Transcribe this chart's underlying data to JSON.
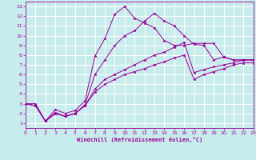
{
  "background_color": "#c8ecec",
  "grid_color": "#aadddd",
  "line_color": "#990099",
  "xlabel": "Windchill (Refroidissement éolien,°C)",
  "xlim": [
    0,
    23
  ],
  "ylim": [
    0.5,
    13.5
  ],
  "xticks": [
    0,
    1,
    2,
    3,
    4,
    5,
    6,
    7,
    8,
    9,
    10,
    11,
    12,
    13,
    14,
    15,
    16,
    17,
    18,
    19,
    20,
    21,
    22,
    23
  ],
  "yticks": [
    1,
    2,
    3,
    4,
    5,
    6,
    7,
    8,
    9,
    10,
    11,
    12,
    13
  ],
  "series": [
    [
      3.0,
      3.0,
      1.2,
      2.4,
      2.0,
      2.3,
      3.3,
      7.9,
      9.7,
      12.2,
      13.0,
      11.8,
      11.3,
      10.8,
      9.5,
      9.0,
      9.0,
      9.2,
      9.2,
      9.2,
      7.8,
      7.5,
      7.5,
      7.5
    ],
    [
      3.0,
      2.8,
      1.2,
      2.1,
      1.7,
      2.0,
      2.9,
      6.0,
      7.5,
      9.0,
      10.0,
      10.5,
      11.5,
      12.3,
      11.5,
      11.0,
      10.0,
      9.1,
      9.0,
      7.5,
      7.8,
      7.5,
      7.5,
      7.5
    ],
    [
      3.0,
      2.8,
      1.2,
      2.0,
      1.7,
      2.0,
      2.8,
      4.5,
      5.5,
      6.0,
      6.5,
      7.0,
      7.5,
      8.0,
      8.3,
      8.8,
      9.3,
      6.2,
      6.5,
      6.8,
      7.0,
      7.2,
      7.5,
      7.5
    ],
    [
      3.0,
      2.8,
      1.2,
      2.0,
      1.7,
      2.0,
      2.8,
      4.2,
      5.0,
      5.5,
      6.0,
      6.3,
      6.6,
      7.0,
      7.3,
      7.7,
      8.0,
      5.5,
      6.0,
      6.3,
      6.6,
      7.0,
      7.2,
      7.2
    ]
  ]
}
